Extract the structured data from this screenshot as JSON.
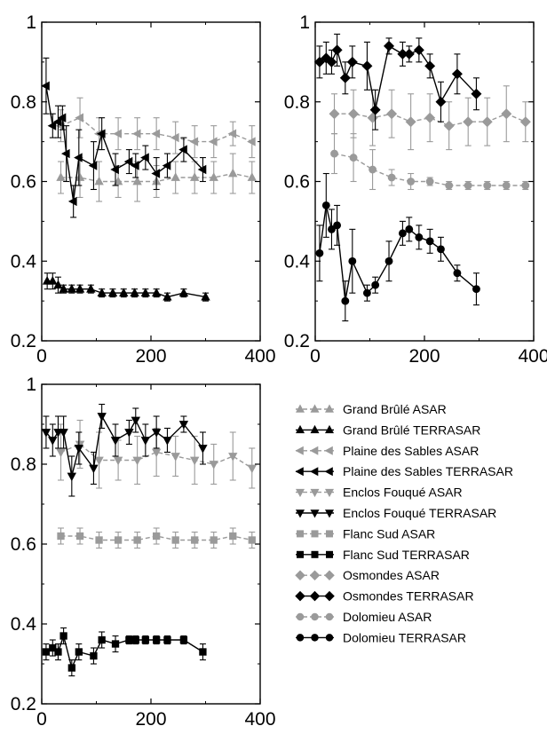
{
  "chart_data": [
    {
      "type": "scatter",
      "panel": "top-left",
      "xlim": [
        0,
        400
      ],
      "ylim": [
        0.2,
        1
      ],
      "x_ticks": [
        0,
        200,
        400
      ],
      "y_ticks": [
        0.2,
        0.4,
        0.6,
        0.8,
        1
      ],
      "x_tick_labels": [
        "0",
        "200",
        "400"
      ],
      "y_tick_labels": [
        "0.2",
        "0.4",
        "0.6",
        "0.8",
        "1"
      ],
      "grid": false,
      "series": [
        {
          "name": "Grand Brûlé ASAR",
          "color": "#9a9a9a",
          "marker": "triangle-up",
          "dashed": true,
          "x": [
            35,
            70,
            105,
            140,
            175,
            210,
            245,
            280,
            315,
            350,
            385
          ],
          "y": [
            0.61,
            0.61,
            0.6,
            0.6,
            0.6,
            0.6,
            0.61,
            0.61,
            0.61,
            0.62,
            0.61
          ],
          "err": [
            0.04,
            0.05,
            0.05,
            0.04,
            0.05,
            0.04,
            0.04,
            0.04,
            0.04,
            0.05,
            0.04
          ]
        },
        {
          "name": "Grand Brûlé TERRASAR",
          "color": "#000000",
          "marker": "triangle-up",
          "dashed": false,
          "x": [
            10,
            20,
            30,
            40,
            55,
            70,
            90,
            110,
            130,
            150,
            170,
            190,
            210,
            230,
            260,
            300
          ],
          "y": [
            0.35,
            0.35,
            0.34,
            0.33,
            0.33,
            0.33,
            0.33,
            0.32,
            0.32,
            0.32,
            0.32,
            0.32,
            0.32,
            0.31,
            0.32,
            0.31
          ],
          "err": [
            0.02,
            0.02,
            0.02,
            0.01,
            0.01,
            0.01,
            0.01,
            0.01,
            0.01,
            0.01,
            0.01,
            0.01,
            0.01,
            0.01,
            0.01,
            0.01
          ]
        },
        {
          "name": "Plaine des Sables ASAR",
          "color": "#9a9a9a",
          "marker": "triangle-left",
          "dashed": true,
          "x": [
            35,
            70,
            105,
            140,
            175,
            210,
            245,
            280,
            315,
            350,
            385
          ],
          "y": [
            0.74,
            0.76,
            0.72,
            0.72,
            0.72,
            0.72,
            0.71,
            0.7,
            0.7,
            0.72,
            0.7
          ],
          "err": [
            0.04,
            0.05,
            0.04,
            0.04,
            0.04,
            0.04,
            0.04,
            0.04,
            0.04,
            0.03,
            0.04
          ]
        },
        {
          "name": "Plaine des Sables TERRASAR",
          "color": "#000000",
          "marker": "triangle-left",
          "dashed": false,
          "x": [
            8,
            20,
            30,
            38,
            45,
            58,
            68,
            95,
            110,
            135,
            160,
            172,
            190,
            210,
            230,
            260,
            295
          ],
          "y": [
            0.84,
            0.74,
            0.75,
            0.76,
            0.67,
            0.55,
            0.66,
            0.64,
            0.72,
            0.63,
            0.65,
            0.64,
            0.66,
            0.62,
            0.64,
            0.68,
            0.63
          ],
          "err": [
            0.07,
            0.03,
            0.04,
            0.03,
            0.07,
            0.04,
            0.07,
            0.06,
            0.04,
            0.04,
            0.03,
            0.03,
            0.03,
            0.04,
            0.03,
            0.03,
            0.03
          ]
        }
      ]
    },
    {
      "type": "scatter",
      "panel": "top-right",
      "xlim": [
        0,
        400
      ],
      "ylim": [
        0.2,
        1
      ],
      "x_ticks": [
        0,
        200,
        400
      ],
      "y_ticks": [
        0.2,
        0.4,
        0.6,
        0.8,
        1
      ],
      "x_tick_labels": [
        "0",
        "200",
        "400"
      ],
      "y_tick_labels": [
        "0.2",
        "0.4",
        "0.6",
        "0.8",
        "1"
      ],
      "grid": false,
      "series": [
        {
          "name": "Osmondes ASAR",
          "color": "#9a9a9a",
          "marker": "diamond",
          "dashed": true,
          "x": [
            35,
            70,
            105,
            140,
            175,
            210,
            245,
            280,
            315,
            350,
            385
          ],
          "y": [
            0.77,
            0.77,
            0.76,
            0.77,
            0.75,
            0.76,
            0.74,
            0.75,
            0.75,
            0.77,
            0.75
          ],
          "err": [
            0.05,
            0.06,
            0.07,
            0.06,
            0.07,
            0.06,
            0.06,
            0.06,
            0.06,
            0.07,
            0.05
          ]
        },
        {
          "name": "Osmondes TERRASAR",
          "color": "#000000",
          "marker": "diamond",
          "dashed": false,
          "x": [
            8,
            20,
            30,
            40,
            55,
            68,
            95,
            110,
            135,
            160,
            172,
            190,
            210,
            230,
            260,
            295
          ],
          "y": [
            0.9,
            0.91,
            0.9,
            0.93,
            0.86,
            0.9,
            0.89,
            0.78,
            0.94,
            0.92,
            0.92,
            0.93,
            0.89,
            0.8,
            0.87,
            0.82
          ],
          "err": [
            0.04,
            0.04,
            0.03,
            0.04,
            0.04,
            0.04,
            0.06,
            0.05,
            0.02,
            0.03,
            0.02,
            0.03,
            0.03,
            0.05,
            0.05,
            0.04
          ]
        },
        {
          "name": "Dolomieu ASAR",
          "color": "#9a9a9a",
          "marker": "circle",
          "dashed": true,
          "x": [
            35,
            70,
            105,
            140,
            175,
            210,
            245,
            280,
            315,
            350,
            385
          ],
          "y": [
            0.67,
            0.66,
            0.63,
            0.61,
            0.6,
            0.6,
            0.59,
            0.59,
            0.59,
            0.59,
            0.59
          ],
          "err": [
            0.05,
            0.06,
            0.05,
            0.02,
            0.02,
            0.01,
            0.01,
            0.01,
            0.01,
            0.01,
            0.01
          ]
        },
        {
          "name": "Dolomieu TERRASAR",
          "color": "#000000",
          "marker": "circle",
          "dashed": false,
          "x": [
            8,
            20,
            30,
            40,
            55,
            68,
            95,
            110,
            135,
            160,
            172,
            190,
            210,
            230,
            260,
            295
          ],
          "y": [
            0.42,
            0.54,
            0.48,
            0.49,
            0.3,
            0.4,
            0.32,
            0.34,
            0.4,
            0.47,
            0.48,
            0.46,
            0.45,
            0.43,
            0.37,
            0.33
          ],
          "err": [
            0.07,
            0.08,
            0.05,
            0.05,
            0.05,
            0.08,
            0.02,
            0.02,
            0.05,
            0.03,
            0.03,
            0.03,
            0.03,
            0.03,
            0.02,
            0.04
          ]
        }
      ]
    },
    {
      "type": "scatter",
      "panel": "bottom-left",
      "xlim": [
        0,
        400
      ],
      "ylim": [
        0.2,
        1
      ],
      "x_ticks": [
        0,
        200,
        400
      ],
      "y_ticks": [
        0.2,
        0.4,
        0.6,
        0.8,
        1
      ],
      "x_tick_labels": [
        "0",
        "200",
        "400"
      ],
      "y_tick_labels": [
        "0.2",
        "0.4",
        "0.6",
        "0.8",
        "1"
      ],
      "grid": false,
      "series": [
        {
          "name": "Enclos Fouqué ASAR",
          "color": "#9a9a9a",
          "marker": "triangle-down",
          "dashed": true,
          "x": [
            35,
            70,
            105,
            140,
            175,
            210,
            245,
            280,
            315,
            350,
            385
          ],
          "y": [
            0.83,
            0.85,
            0.81,
            0.81,
            0.81,
            0.83,
            0.82,
            0.81,
            0.8,
            0.82,
            0.79
          ],
          "err": [
            0.07,
            0.06,
            0.07,
            0.05,
            0.06,
            0.06,
            0.05,
            0.06,
            0.05,
            0.06,
            0.05
          ]
        },
        {
          "name": "Enclos Fouqué TERRASAR",
          "color": "#000000",
          "marker": "triangle-down",
          "dashed": false,
          "x": [
            8,
            20,
            30,
            40,
            55,
            68,
            95,
            110,
            135,
            160,
            172,
            190,
            210,
            230,
            260,
            295
          ],
          "y": [
            0.88,
            0.86,
            0.88,
            0.88,
            0.77,
            0.84,
            0.79,
            0.92,
            0.86,
            0.88,
            0.91,
            0.86,
            0.88,
            0.86,
            0.9,
            0.84
          ],
          "err": [
            0.04,
            0.04,
            0.04,
            0.04,
            0.05,
            0.04,
            0.04,
            0.03,
            0.04,
            0.03,
            0.03,
            0.04,
            0.04,
            0.03,
            0.02,
            0.04
          ]
        },
        {
          "name": "Flanc Sud ASAR",
          "color": "#9a9a9a",
          "marker": "square",
          "dashed": true,
          "x": [
            35,
            70,
            105,
            140,
            175,
            210,
            245,
            280,
            315,
            350,
            385
          ],
          "y": [
            0.62,
            0.62,
            0.61,
            0.61,
            0.61,
            0.62,
            0.61,
            0.61,
            0.61,
            0.62,
            0.61
          ],
          "err": [
            0.02,
            0.02,
            0.02,
            0.02,
            0.02,
            0.02,
            0.02,
            0.02,
            0.02,
            0.02,
            0.02
          ]
        },
        {
          "name": "Flanc Sud TERRASAR",
          "color": "#000000",
          "marker": "square",
          "dashed": false,
          "x": [
            8,
            20,
            30,
            40,
            55,
            68,
            95,
            110,
            135,
            160,
            172,
            190,
            210,
            230,
            260,
            295
          ],
          "y": [
            0.33,
            0.34,
            0.33,
            0.37,
            0.29,
            0.33,
            0.32,
            0.36,
            0.35,
            0.36,
            0.36,
            0.36,
            0.36,
            0.36,
            0.36,
            0.33
          ],
          "err": [
            0.02,
            0.02,
            0.02,
            0.02,
            0.02,
            0.02,
            0.02,
            0.02,
            0.02,
            0.01,
            0.01,
            0.01,
            0.01,
            0.01,
            0.01,
            0.02
          ]
        }
      ]
    }
  ],
  "legend": {
    "placement": "bottom-right",
    "entries": [
      {
        "label": "Grand Brûlé ASAR",
        "color": "#9a9a9a",
        "marker": "triangle-up",
        "dashed": true
      },
      {
        "label": "Grand Brûlé TERRASAR",
        "color": "#000000",
        "marker": "triangle-up",
        "dashed": false
      },
      {
        "label": "Plaine des Sables ASAR",
        "color": "#9a9a9a",
        "marker": "triangle-left",
        "dashed": true
      },
      {
        "label": "Plaine des Sables TERRASAR",
        "color": "#000000",
        "marker": "triangle-left",
        "dashed": false
      },
      {
        "label": "Enclos Fouqué ASAR",
        "color": "#9a9a9a",
        "marker": "triangle-down",
        "dashed": true
      },
      {
        "label": "Enclos Fouqué TERRASAR",
        "color": "#000000",
        "marker": "triangle-down",
        "dashed": false
      },
      {
        "label": "Flanc Sud ASAR",
        "color": "#9a9a9a",
        "marker": "square",
        "dashed": true
      },
      {
        "label": "Flanc Sud TERRASAR",
        "color": "#000000",
        "marker": "square",
        "dashed": false
      },
      {
        "label": "Osmondes ASAR",
        "color": "#9a9a9a",
        "marker": "diamond",
        "dashed": true
      },
      {
        "label": "Osmondes TERRASAR",
        "color": "#000000",
        "marker": "diamond",
        "dashed": false
      },
      {
        "label": "Dolomieu ASAR",
        "color": "#9a9a9a",
        "marker": "circle",
        "dashed": true
      },
      {
        "label": "Dolomieu TERRASAR",
        "color": "#000000",
        "marker": "circle",
        "dashed": false
      }
    ]
  }
}
